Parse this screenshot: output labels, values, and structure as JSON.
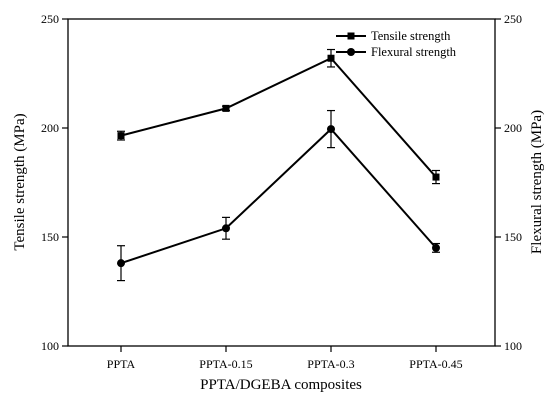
{
  "chart_data": {
    "type": "line",
    "categories": [
      "PPTA",
      "PPTA-0.15",
      "PPTA-0.3",
      "PPTA-0.45"
    ],
    "xlabel": "PPTA/DGEBA composites",
    "ylabel": "Tensile strength (MPa)",
    "y2label": "Flexural strength (MPa)",
    "ylim": [
      100,
      250
    ],
    "y2lim": [
      100,
      250
    ],
    "yticks": [
      100,
      150,
      200,
      250
    ],
    "legend_position": "top-right",
    "grid": false,
    "series": [
      {
        "name": "Tensile strength",
        "marker": "square",
        "axis": "left",
        "values": [
          196.5,
          209,
          232,
          177.5
        ],
        "errors": [
          2,
          1,
          4,
          3
        ]
      },
      {
        "name": "Flexural strength",
        "marker": "circle",
        "axis": "right",
        "values": [
          138,
          154,
          199.5,
          145
        ],
        "errors": [
          8,
          5,
          8.5,
          2
        ]
      }
    ]
  }
}
